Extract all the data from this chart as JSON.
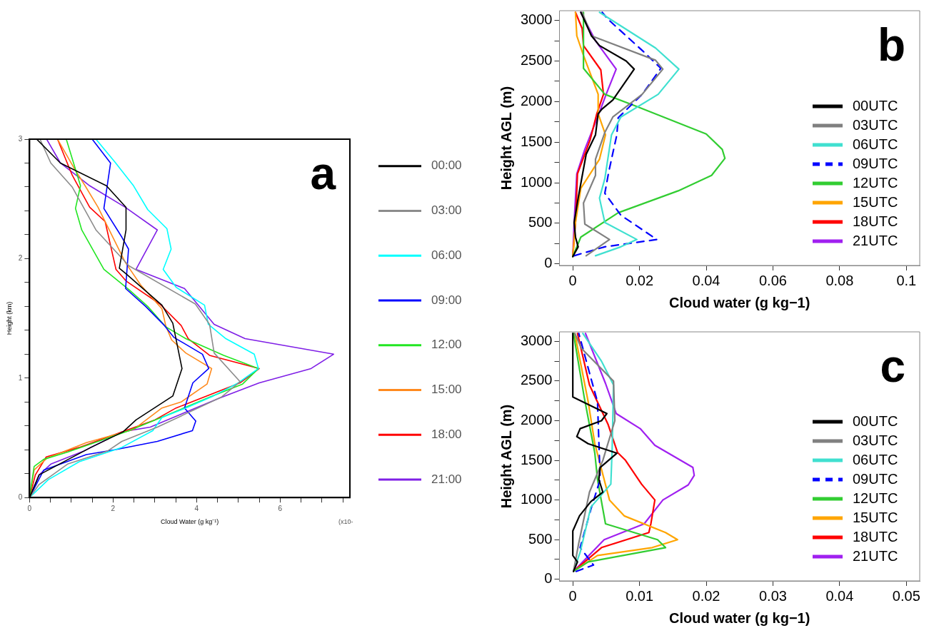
{
  "chart_data": [
    {
      "type": "line",
      "xlabel": "Cloud Water (g kg⁻¹)",
      "ylabel": "Height (km)",
      "legend": "right",
      "grid": false,
      "annotations": [
        "a",
        "(x10-"
      ],
      "xlim": [
        0,
        7.67
      ],
      "ylim": [
        0,
        3
      ],
      "xticks": [
        0,
        {
          "value": 0.5,
          "label": null
        },
        {
          "value": 1,
          "label": null
        },
        {
          "value": 1.5,
          "label": null
        },
        2,
        {
          "value": 2.5,
          "label": null
        },
        {
          "value": 3,
          "label": null
        },
        {
          "value": 3.5,
          "label": null
        },
        4,
        {
          "value": 4.5,
          "label": null
        },
        {
          "value": 5,
          "label": null
        },
        {
          "value": 5.5,
          "label": null
        },
        6,
        {
          "value": 6.5,
          "label": null
        },
        {
          "value": 7,
          "label": null
        },
        {
          "value": 7.5,
          "label": null
        }
      ],
      "yticks": [
        0,
        {
          "value": 0.2,
          "label": null
        },
        {
          "value": 0.4,
          "label": null
        },
        {
          "value": 0.6,
          "label": null
        },
        {
          "value": 0.8,
          "label": null
        },
        1,
        {
          "value": 1.2,
          "label": null
        },
        {
          "value": 1.4,
          "label": null
        },
        {
          "value": 1.6,
          "label": null
        },
        {
          "value": 1.8,
          "label": null
        },
        2,
        {
          "value": 2.2,
          "label": null
        },
        {
          "value": 2.4,
          "label": null
        },
        {
          "value": 2.6,
          "label": null
        },
        {
          "value": 2.8,
          "label": null
        },
        3
      ],
      "series": [
        {
          "name": "00:00",
          "color": "#000000",
          "x": [
            0.17,
            0.74,
            1.84,
            2.31,
            2.31,
            2.15,
            2.32,
            3.17,
            3.43,
            3.65,
            3.43,
            2.55,
            2.24,
            1.47,
            0.23,
            0
          ],
          "values": [
            3,
            2.8,
            2.61,
            2.43,
            2.24,
            1.92,
            1.87,
            1.61,
            1.46,
            1.08,
            0.85,
            0.65,
            0.55,
            0.42,
            0.19,
            0
          ]
        },
        {
          "name": "03:00",
          "color": "#8c8c8c",
          "x": [
            0.25,
            0.51,
            1.02,
            1.59,
            2.38,
            3.97,
            4.31,
            4.42,
            5.04,
            4.59,
            3.06,
            2.21,
            1.87,
            0.91,
            0.23,
            0
          ],
          "values": [
            3,
            2.8,
            2.6,
            2.24,
            1.94,
            1.62,
            1.45,
            1.21,
            0.97,
            0.84,
            0.59,
            0.47,
            0.39,
            0.28,
            0.11,
            0
          ]
        },
        {
          "name": "06:00",
          "color": "#00ffff",
          "x": [
            1.59,
            2.04,
            2.49,
            2.83,
            3.29,
            3.39,
            3.2,
            3.51,
            4.19,
            4.28,
            4.7,
            5.38,
            5.48,
            5.0,
            4.4,
            3.74,
            3.17,
            2.95,
            2.21,
            1.19,
            0.45,
            0
          ],
          "values": [
            3,
            2.81,
            2.61,
            2.41,
            2.25,
            2.08,
            1.91,
            1.76,
            1.61,
            1.45,
            1.33,
            1.2,
            1.08,
            0.96,
            0.85,
            0.75,
            0.67,
            0.56,
            0.42,
            0.3,
            0.15,
            0
          ]
        },
        {
          "name": "09:00",
          "color": "#0000ff",
          "x": [
            1.5,
            1.94,
            1.78,
            2.21,
            2.37,
            2.3,
            2.78,
            3.23,
            3.46,
            4.14,
            4.29,
            3.91,
            3.71,
            3.98,
            3.9,
            3.06,
            2.04,
            1.36,
            0.34,
            0
          ],
          "values": [
            3,
            2.8,
            2.42,
            2.18,
            2.08,
            1.75,
            1.6,
            1.44,
            1.34,
            1.2,
            1.08,
            0.96,
            0.75,
            0.64,
            0.56,
            0.47,
            0.4,
            0.36,
            0.23,
            0
          ]
        },
        {
          "name": "12:00",
          "color": "#22e622",
          "x": [
            0.88,
            1.22,
            1.1,
            1.25,
            1.78,
            2.38,
            2.83,
            3.26,
            3.74,
            4.65,
            5.48,
            5.1,
            4.31,
            3.29,
            2.38,
            0.91,
            0.34,
            0.11,
            0
          ],
          "values": [
            3,
            2.61,
            2.42,
            2.24,
            1.91,
            1.74,
            1.6,
            1.43,
            1.33,
            1.19,
            1.08,
            0.95,
            0.84,
            0.69,
            0.56,
            0.38,
            0.32,
            0.26,
            0
          ]
        },
        {
          "name": "15:00",
          "color": "#ff8a1e",
          "x": [
            0.67,
            1.08,
            1.33,
            1.64,
            2.29,
            2.66,
            3.17,
            3.26,
            3.4,
            3.74,
            4.36,
            4.25,
            3.63,
            3.17,
            2.49,
            1.36,
            0.42,
            0.11,
            0
          ],
          "values": [
            3,
            2.75,
            2.61,
            2.43,
            1.97,
            1.78,
            1.58,
            1.44,
            1.32,
            1.21,
            1.08,
            0.95,
            0.8,
            0.75,
            0.57,
            0.46,
            0.33,
            0.23,
            0
          ]
        },
        {
          "name": "18:00",
          "color": "#ff0000",
          "x": [
            0.67,
            1.02,
            1.44,
            1.81,
            2.07,
            2.32,
            3.12,
            3.63,
            3.8,
            4.31,
            5.5,
            5.04,
            3.51,
            3.0,
            2.21,
            1.19,
            0.4,
            0.14,
            0
          ],
          "values": [
            3,
            2.7,
            2.43,
            2.31,
            1.91,
            1.81,
            1.62,
            1.44,
            1.33,
            1.19,
            1.08,
            0.96,
            0.75,
            0.65,
            0.55,
            0.42,
            0.34,
            0.19,
            0
          ]
        },
        {
          "name": "21:00",
          "color": "#7f1fe6",
          "x": [
            0.41,
            0.74,
            1.44,
            2.29,
            3.06,
            2.55,
            3.71,
            4.42,
            5.16,
            7.28,
            6.74,
            5.5,
            4.53,
            2.89,
            2.21,
            1.3,
            0.51,
            0.23,
            0
          ],
          "values": [
            3,
            2.8,
            2.61,
            2.43,
            2.24,
            1.91,
            1.75,
            1.45,
            1.33,
            1.2,
            1.08,
            0.96,
            0.83,
            0.59,
            0.55,
            0.39,
            0.28,
            0.19,
            0
          ]
        }
      ]
    },
    {
      "type": "line",
      "xlabel": "Cloud water (g kg−1)",
      "ylabel": "Height AGL (m)",
      "legend": "bottom right",
      "grid": false,
      "annotations": [
        "b"
      ],
      "xlim": [
        -0.004,
        0.104
      ],
      "ylim": [
        -20,
        3120
      ],
      "xticks": [
        0,
        0.02,
        0.04,
        0.06,
        0.08,
        0.1
      ],
      "yticks": [
        0,
        {
          "value": 250,
          "label": null
        },
        500,
        {
          "value": 750,
          "label": null
        },
        1000,
        {
          "value": 1250,
          "label": null
        },
        1500,
        {
          "value": 1750,
          "label": null
        },
        2000,
        {
          "value": 2250,
          "label": null
        },
        2500,
        {
          "value": 2750,
          "label": null
        },
        3000
      ],
      "series": [
        {
          "name": "00UTC",
          "color": "#000000",
          "x": [
            0,
            0.0016,
            0.0008,
            0.0004,
            0.0016,
            0.004,
            0.0068,
            0.0076,
            0.0088,
            0.012,
            0.0184,
            0.016,
            0.008,
            0.0056,
            0.0024
          ],
          "values": [
            90,
            210,
            330,
            510,
            810,
            1350,
            1590,
            1850,
            1910,
            2020,
            2400,
            2500,
            2690,
            2810,
            3100
          ]
        },
        {
          "name": "03UTC",
          "color": "#808080",
          "x": [
            0.004,
            0.011,
            0.0036,
            0.0032,
            0.0068,
            0.0068,
            0.0096,
            0.012,
            0.0208,
            0.027,
            0.0248,
            0.0056,
            0.0028
          ],
          "values": [
            100,
            300,
            490,
            750,
            1090,
            1290,
            1620,
            1810,
            2090,
            2400,
            2510,
            2810,
            3100
          ]
        },
        {
          "name": "06UTC",
          "color": "#40e0d0",
          "x": [
            0.0068,
            0.0144,
            0.0192,
            0.0096,
            0.008,
            0.0096,
            0.0116,
            0.0144,
            0.0256,
            0.0318,
            0.0248,
            0.008
          ],
          "values": [
            100,
            210,
            300,
            510,
            810,
            1050,
            1590,
            1810,
            2090,
            2400,
            2660,
            3100
          ]
        },
        {
          "name": "09UTC",
          "color": "#0000ff",
          "line_style": "dashed",
          "x": [
            0.0004,
            0.0096,
            0.0252,
            0.0144,
            0.0096,
            0.0108,
            0.0132,
            0.0136,
            0.0208,
            0.0264,
            0.0216,
            0.0104,
            0.0088
          ],
          "values": [
            100,
            210,
            300,
            600,
            870,
            1140,
            1590,
            1800,
            2090,
            2410,
            2600,
            3020,
            3100
          ]
        },
        {
          "name": "12UTC",
          "color": "#32cd32",
          "x": [
            0,
            0.0024,
            0.0136,
            0.0316,
            0.0416,
            0.0456,
            0.0448,
            0.04,
            0.0192,
            0.0096,
            0.0032,
            0.0032
          ],
          "values": [
            90,
            330,
            630,
            900,
            1090,
            1300,
            1410,
            1600,
            1940,
            2090,
            2410,
            3100
          ]
        },
        {
          "name": "15UTC",
          "color": "#ffa500",
          "x": [
            0,
            0.0008,
            0.0024,
            0.008,
            0.0098,
            0.0076,
            0.0076,
            0.0032,
            0.0012,
            0.0008
          ],
          "values": [
            90,
            510,
            930,
            1290,
            1590,
            1850,
            2090,
            2570,
            2810,
            3100
          ]
        },
        {
          "name": "18UTC",
          "color": "#ff0000",
          "x": [
            0,
            0.0008,
            0.0014,
            0.0052,
            0.0072,
            0.0092,
            0.0084,
            0.0032,
            0.0028,
            0.0008
          ],
          "values": [
            90,
            510,
            1110,
            1530,
            1850,
            2090,
            2390,
            2690,
            2900,
            3100
          ]
        },
        {
          "name": "21UTC",
          "color": "#a020f0",
          "x": [
            0,
            0.0004,
            0.0012,
            0.0036,
            0.008,
            0.01,
            0.013,
            0.0068,
            0.0024
          ],
          "values": [
            90,
            510,
            1110,
            1410,
            1870,
            2090,
            2400,
            2750,
            3100
          ]
        }
      ]
    },
    {
      "type": "line",
      "xlabel": "Cloud water (g kg−1)",
      "ylabel": "Height AGL (m)",
      "legend": "bottom right",
      "grid": false,
      "annotations": [
        "c"
      ],
      "xlim": [
        -0.002,
        0.052
      ],
      "ylim": [
        -20,
        3120
      ],
      "xticks": [
        0,
        0.01,
        0.02,
        0.03,
        0.04,
        0.05
      ],
      "yticks": [
        0,
        {
          "value": 250,
          "label": null
        },
        500,
        {
          "value": 750,
          "label": null
        },
        1000,
        {
          "value": 1250,
          "label": null
        },
        1500,
        {
          "value": 1750,
          "label": null
        },
        2000,
        {
          "value": 2250,
          "label": null
        },
        2500,
        {
          "value": 2750,
          "label": null
        },
        3000
      ],
      "series": [
        {
          "name": "00UTC",
          "color": "#000000",
          "x": [
            0.0001,
            0.0007,
            0,
            0,
            0.001,
            0.0027,
            0.0045,
            0.0039,
            0.0041,
            0.0066,
            0.0023,
            0.0006,
            0.0011,
            0.0043,
            0.0051,
            0,
            0
          ],
          "values": [
            100,
            220,
            300,
            610,
            800,
            980,
            1100,
            1260,
            1410,
            1590,
            1710,
            1800,
            1900,
            2000,
            2090,
            2300,
            3100
          ]
        },
        {
          "name": "03UTC",
          "color": "#808080",
          "x": [
            0.0001,
            0.0009,
            0.0025,
            0.0045,
            0.0063,
            0.0061,
            0.0013,
            0.0003
          ],
          "values": [
            100,
            460,
            1100,
            1500,
            2000,
            2500,
            2910,
            3100
          ]
        },
        {
          "name": "06UTC",
          "color": "#40e0d0",
          "x": [
            0.0001,
            0.0011,
            0.0027,
            0.0057,
            0.0059,
            0.0061,
            0.0043,
            0.0015
          ],
          "values": [
            100,
            340,
            910,
            1200,
            1650,
            2450,
            2750,
            3100
          ]
        },
        {
          "name": "09UTC",
          "color": "#0000ff",
          "line_style": "dashed",
          "x": [
            0.0005,
            0.0031,
            0.0011,
            0.0027,
            0.0041,
            0.0037,
            0.0027,
            0.0009
          ],
          "values": [
            100,
            180,
            400,
            880,
            1260,
            2240,
            2540,
            3100
          ]
        },
        {
          "name": "12UTC",
          "color": "#32cd32",
          "x": [
            0.0001,
            0.0023,
            0.0139,
            0.0127,
            0.0049,
            0.0037,
            0.0033,
            0.0017,
            0.0001
          ],
          "values": [
            100,
            220,
            400,
            500,
            700,
            1260,
            1590,
            2300,
            3100
          ]
        },
        {
          "name": "15UTC",
          "color": "#ffa500",
          "x": [
            0.0001,
            0.0037,
            0.0119,
            0.0157,
            0.0139,
            0.0077,
            0.0055,
            0.0033,
            0.0023,
            0.0003
          ],
          "values": [
            100,
            300,
            400,
            500,
            590,
            800,
            1000,
            1710,
            2240,
            3100
          ]
        },
        {
          "name": "18UTC",
          "color": "#ff0000",
          "x": [
            0.0001,
            0.0043,
            0.0114,
            0.0117,
            0.0123,
            0.0103,
            0.0079,
            0.0067,
            0.0053,
            0.0025,
            0.0007
          ],
          "values": [
            100,
            400,
            590,
            700,
            1000,
            1200,
            1500,
            1600,
            1950,
            2450,
            3100
          ]
        },
        {
          "name": "21UTC",
          "color": "#a020f0",
          "x": [
            0.0001,
            0.0047,
            0.0107,
            0.0135,
            0.0173,
            0.0182,
            0.018,
            0.0123,
            0.0101,
            0.0065,
            0.0049,
            0.0019
          ],
          "values": [
            100,
            500,
            700,
            1000,
            1190,
            1310,
            1410,
            1690,
            1900,
            2090,
            2470,
            3100
          ]
        }
      ]
    }
  ]
}
